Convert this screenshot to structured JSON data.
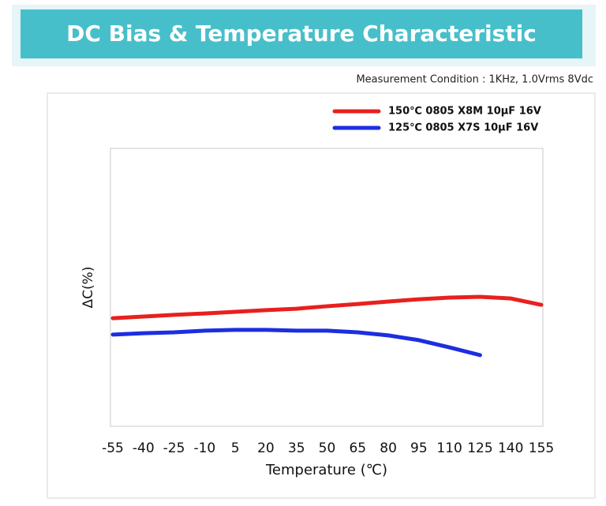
{
  "header": {
    "title": "DC Bias & Temperature Characteristic",
    "condition": "Measurement Condition : 1KHz, 1.0Vrms 8Vdc"
  },
  "chart_data": {
    "type": "line",
    "y_label": "ΔC(%)",
    "x_label": "Temperature (℃)",
    "x": [
      -55,
      -40,
      -25,
      -10,
      5,
      20,
      35,
      50,
      65,
      80,
      95,
      110,
      125,
      140,
      155
    ],
    "series": [
      {
        "name": "150℃ 0805 X8M 10μF 16V",
        "color": "#e8201e",
        "values": [
          -11.1,
          -10.5,
          -9.9,
          -9.4,
          -8.8,
          -8.2,
          -7.7,
          -6.8,
          -6.0,
          -5.1,
          -4.3,
          -3.7,
          -3.4,
          -4.0,
          -6.3
        ]
      },
      {
        "name": "125℃ 0805 X7S 10μF 16V",
        "color": "#1c2ee0",
        "values": [
          -17.0,
          -16.5,
          -16.2,
          -15.6,
          -15.3,
          -15.3,
          -15.6,
          -15.6,
          -16.2,
          -17.3,
          -19.0,
          -21.6,
          -24.4,
          null,
          null
        ]
      }
    ],
    "xlim": [
      -55,
      155
    ],
    "xticks": [
      -55,
      -40,
      -25,
      -10,
      5,
      20,
      35,
      50,
      65,
      80,
      95,
      110,
      125,
      140,
      155
    ],
    "ylim": [
      -50,
      50
    ],
    "grid": false,
    "legend": "top-right"
  }
}
